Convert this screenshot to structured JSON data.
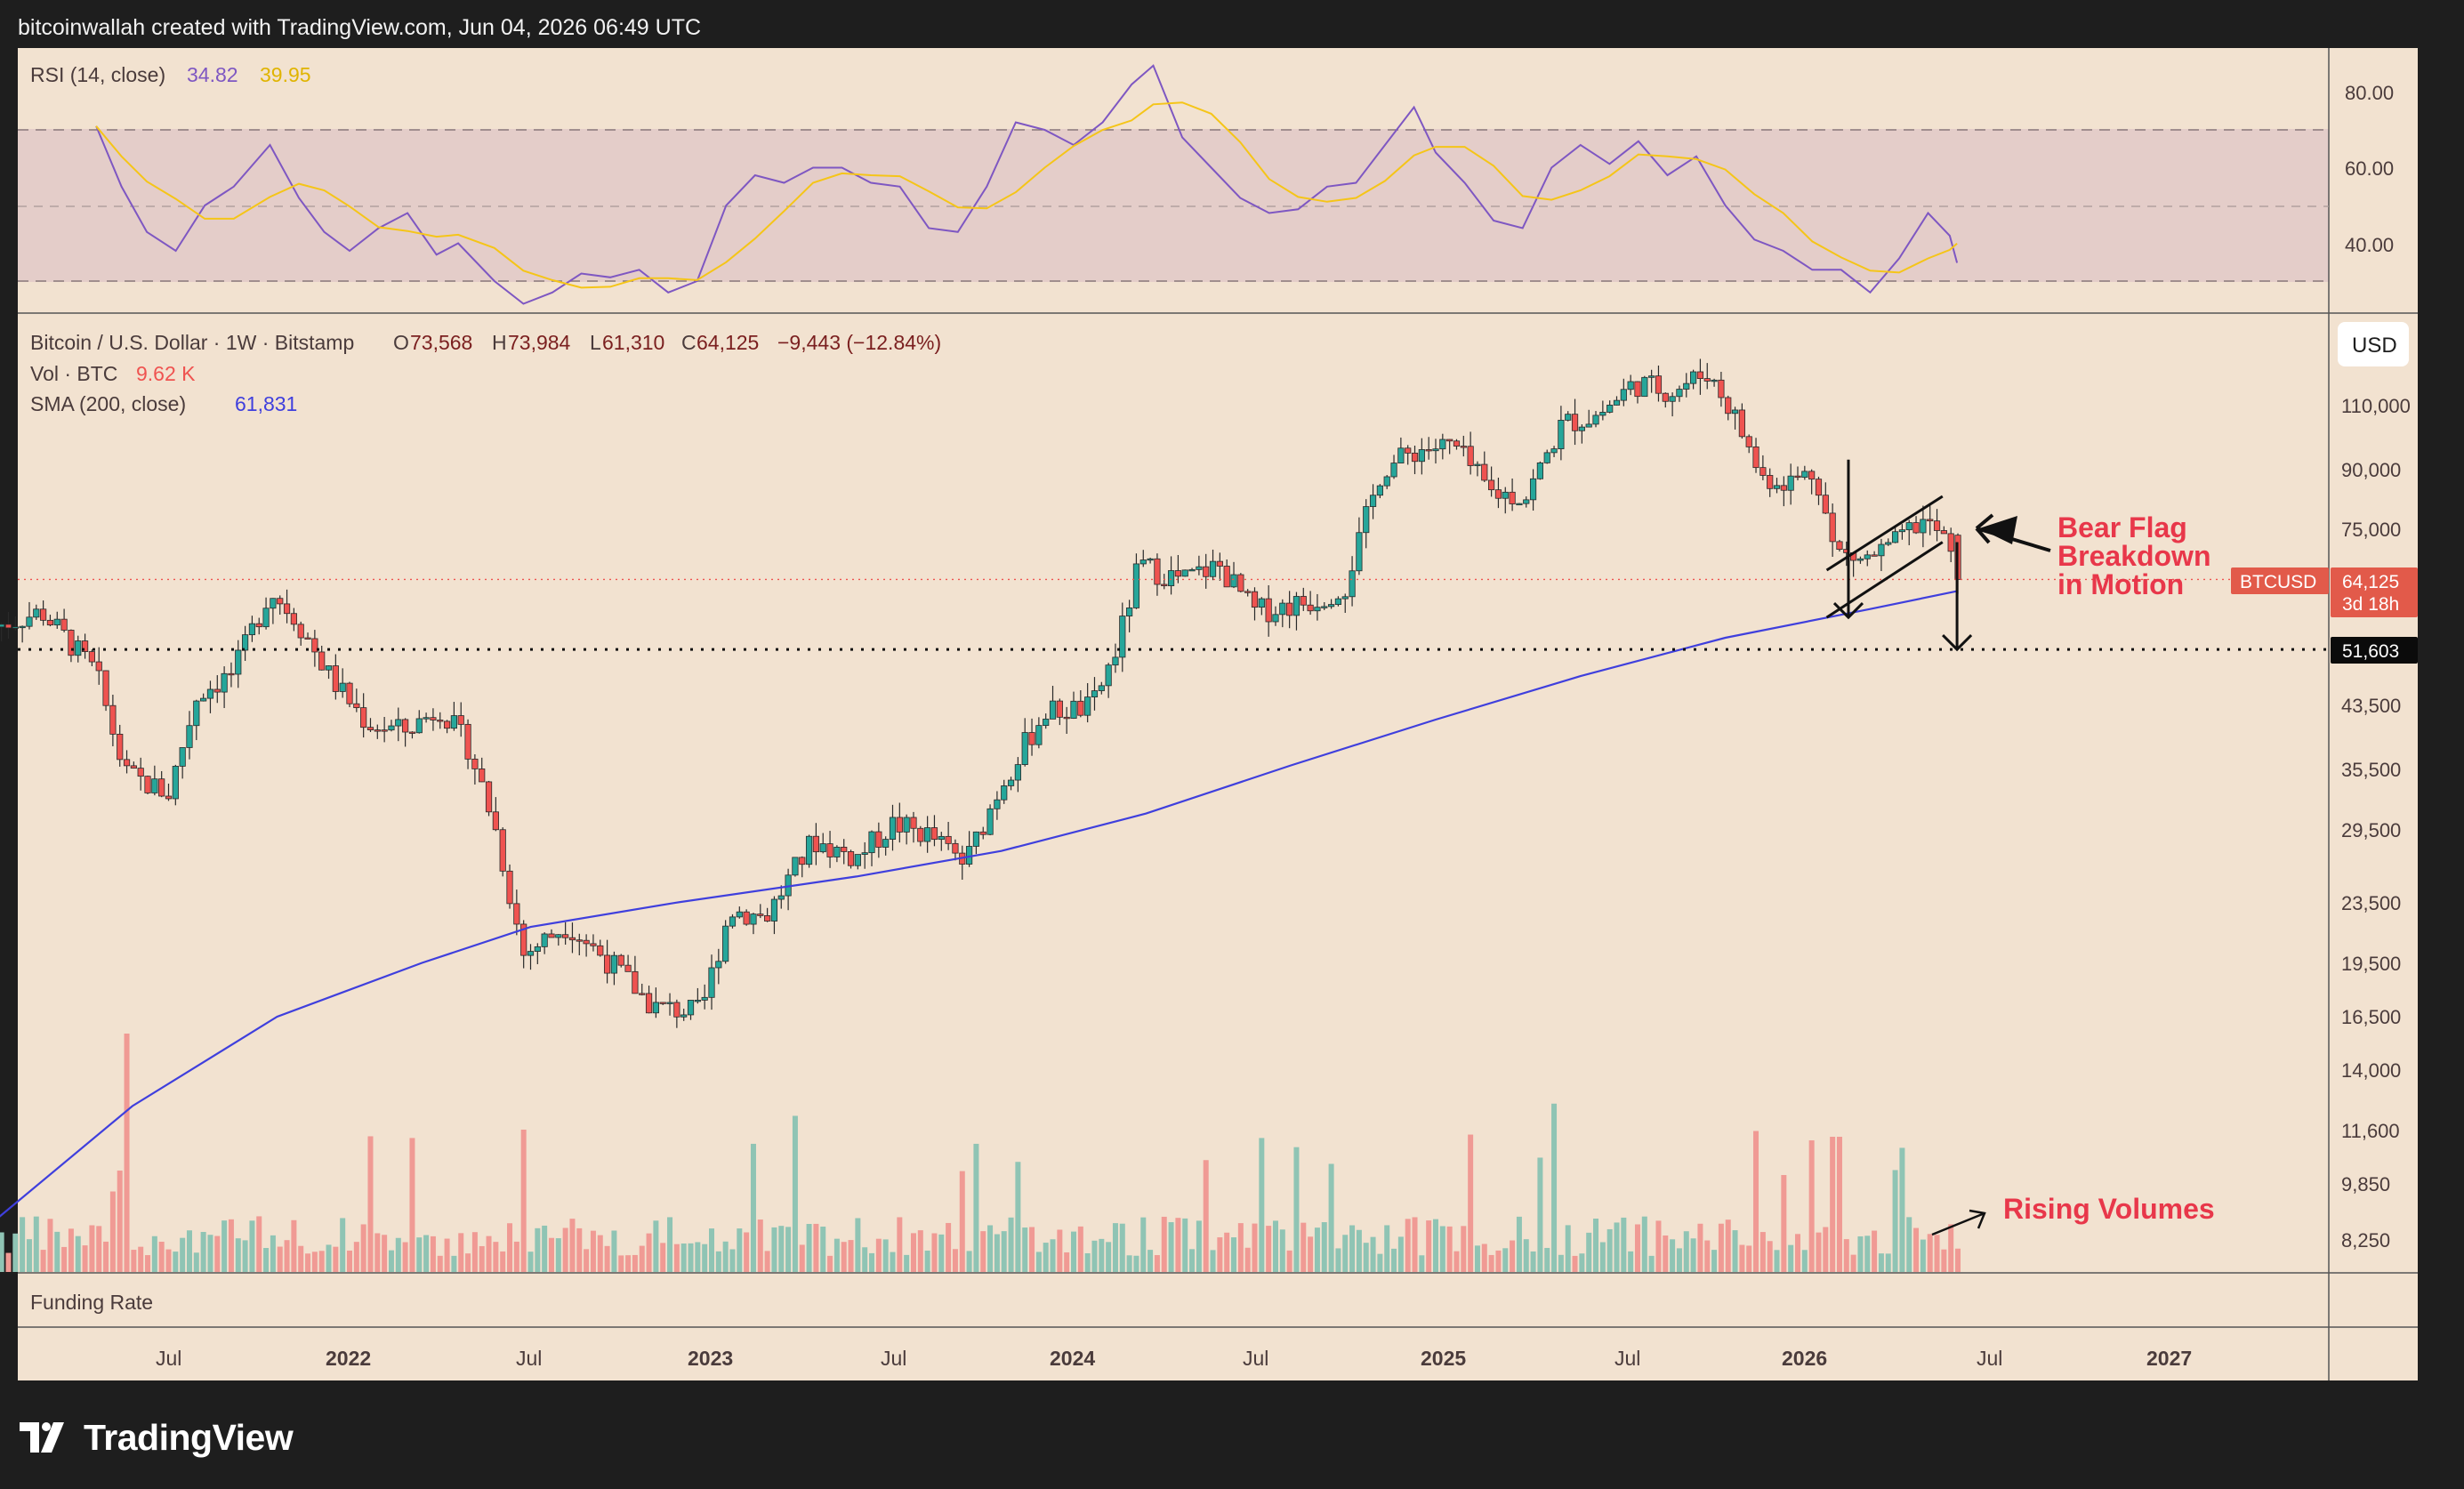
{
  "header": {
    "credit": "bitcoinwallah created with TradingView.com, Jun 04, 2026 06:49 UTC"
  },
  "rsi_panel": {
    "name": "RSI (14, close)",
    "rsi_value": "34.82",
    "ma_value": "39.95",
    "ticks": [
      "80.00",
      "60.00",
      "40.00"
    ],
    "colors": {
      "rsi": "#7e57c2",
      "ma": "#f5c518",
      "band": "#d8c0c4"
    }
  },
  "main_panel": {
    "symbol": "Bitcoin / U.S. Dollar · 1W · Bitstamp",
    "ohlc": {
      "open_label": "O",
      "open": "73,568",
      "high_label": "H",
      "high": "73,984",
      "low_label": "L",
      "low": "61,310",
      "close_label": "C",
      "close": "64,125",
      "change": "−9,443 (−12.84%)"
    },
    "vol_label": "Vol · BTC",
    "vol_value": "9.62 K",
    "sma_label": "SMA (200, close)",
    "sma_value": "61,831",
    "currency": "USD",
    "price_ticks": [
      "110,000",
      "90,000",
      "75,000",
      "43,500",
      "35,500",
      "29,500",
      "23,500",
      "19,500",
      "16,500",
      "14,000",
      "11,600",
      "9,850",
      "8,250"
    ],
    "price_badge": {
      "symbol": "BTCUSD",
      "price": "64,125",
      "countdown": "3d 18h"
    },
    "support_badge": "51,603",
    "funding_label": "Funding Rate",
    "colors": {
      "up": "#26a69a",
      "down": "#ef5350",
      "sma": "#3f3fdd",
      "bg": "#f2e2d0",
      "annot": "#e8374a"
    }
  },
  "annotations": {
    "bear_flag": [
      "Bear Flag",
      "Breakdown",
      "in Motion"
    ],
    "rising_volumes": "Rising Volumes"
  },
  "time_axis": [
    "Jul",
    "2022",
    "Jul",
    "2023",
    "Jul",
    "2024",
    "Jul",
    "2025",
    "Jul",
    "2026",
    "Jul",
    "2027"
  ],
  "chart_data": {
    "type": "candlestick",
    "symbol": "BTCUSD",
    "interval": "1W",
    "y_scale": "log",
    "ylim": [
      7500,
      160000
    ],
    "current": {
      "open": 73568,
      "high": 73984,
      "low": 61310,
      "close": 64125,
      "change": -9443,
      "change_pct": -12.84
    },
    "sma200": 61831,
    "volume_last": "9.62 K",
    "support_level": 51603,
    "rsi": {
      "length": 14,
      "value": 34.82,
      "ma": 39.95,
      "band": [
        30,
        70
      ],
      "path": [
        [
          2021.3,
          71
        ],
        [
          2021.37,
          55
        ],
        [
          2021.44,
          43
        ],
        [
          2021.52,
          38
        ],
        [
          2021.6,
          50
        ],
        [
          2021.68,
          55
        ],
        [
          2021.78,
          66
        ],
        [
          2021.86,
          52
        ],
        [
          2021.93,
          43
        ],
        [
          2022.0,
          38
        ],
        [
          2022.08,
          44
        ],
        [
          2022.16,
          48
        ],
        [
          2022.24,
          37
        ],
        [
          2022.3,
          40
        ],
        [
          2022.4,
          30
        ],
        [
          2022.48,
          24
        ],
        [
          2022.56,
          27
        ],
        [
          2022.64,
          32
        ],
        [
          2022.72,
          31
        ],
        [
          2022.8,
          33
        ],
        [
          2022.88,
          27
        ],
        [
          2022.96,
          30
        ],
        [
          2023.04,
          50
        ],
        [
          2023.12,
          58
        ],
        [
          2023.2,
          56
        ],
        [
          2023.28,
          60
        ],
        [
          2023.36,
          60
        ],
        [
          2023.44,
          56
        ],
        [
          2023.52,
          55
        ],
        [
          2023.6,
          44
        ],
        [
          2023.68,
          43
        ],
        [
          2023.76,
          55
        ],
        [
          2023.84,
          72
        ],
        [
          2023.92,
          70
        ],
        [
          2024.0,
          66
        ],
        [
          2024.08,
          72
        ],
        [
          2024.16,
          82
        ],
        [
          2024.22,
          87
        ],
        [
          2024.3,
          68
        ],
        [
          2024.38,
          60
        ],
        [
          2024.46,
          52
        ],
        [
          2024.54,
          48
        ],
        [
          2024.62,
          49
        ],
        [
          2024.7,
          55
        ],
        [
          2024.78,
          56
        ],
        [
          2024.86,
          66
        ],
        [
          2024.94,
          76
        ],
        [
          2025.0,
          64
        ],
        [
          2025.08,
          56
        ],
        [
          2025.16,
          46
        ],
        [
          2025.24,
          44
        ],
        [
          2025.32,
          60
        ],
        [
          2025.4,
          66
        ],
        [
          2025.48,
          61
        ],
        [
          2025.56,
          67
        ],
        [
          2025.64,
          58
        ],
        [
          2025.72,
          63
        ],
        [
          2025.8,
          50
        ],
        [
          2025.88,
          41
        ],
        [
          2025.96,
          38
        ],
        [
          2026.04,
          33
        ],
        [
          2026.12,
          33
        ],
        [
          2026.2,
          27
        ],
        [
          2026.28,
          36
        ],
        [
          2026.36,
          48
        ],
        [
          2026.42,
          42
        ],
        [
          2026.44,
          34.82
        ]
      ]
    },
    "sma200_path": [
      [
        2021.0,
        8600
      ],
      [
        2021.4,
        12500
      ],
      [
        2021.8,
        16500
      ],
      [
        2022.2,
        19500
      ],
      [
        2022.5,
        21800
      ],
      [
        2022.9,
        23500
      ],
      [
        2023.4,
        25500
      ],
      [
        2023.8,
        27600
      ],
      [
        2024.2,
        31000
      ],
      [
        2024.6,
        36000
      ],
      [
        2025.0,
        41500
      ],
      [
        2025.4,
        47500
      ],
      [
        2025.8,
        53500
      ],
      [
        2026.2,
        58500
      ],
      [
        2026.44,
        61831
      ]
    ],
    "flag_channel": {
      "upper": [
        [
          2026.08,
          66000
        ],
        [
          2026.4,
          83000
        ]
      ],
      "lower": [
        [
          2026.08,
          57000
        ],
        [
          2026.4,
          72000
        ]
      ],
      "pole": [
        [
          2026.14,
          93000
        ],
        [
          2026.14,
          57000
        ]
      ],
      "target": [
        [
          2026.44,
          72000
        ],
        [
          2026.44,
          51603
        ]
      ]
    }
  }
}
